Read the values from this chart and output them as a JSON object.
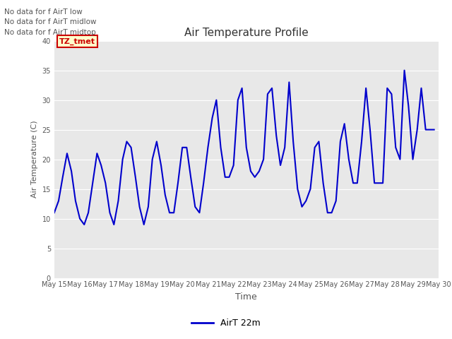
{
  "title": "Air Temperature Profile",
  "xlabel": "Time",
  "ylabel": "Air Temperature (C)",
  "line_color": "#0000CC",
  "ylim": [
    0,
    40
  ],
  "yticks": [
    0,
    5,
    10,
    15,
    20,
    25,
    30,
    35,
    40
  ],
  "xtick_labels": [
    "May 15",
    "May 16",
    "May 17",
    "May 18",
    "May 19",
    "May 20",
    "May 21",
    "May 22",
    "May 23",
    "May 24",
    "May 25",
    "May 26",
    "May 27",
    "May 28",
    "May 29",
    "May 30"
  ],
  "legend_label": "AirT 22m",
  "no_data_texts": [
    "No data for f AirT low",
    "No data for f AirT midlow",
    "No data for f AirT midtop"
  ],
  "tz_tmet_label": "TZ_tmet",
  "x_days": [
    15.0,
    15.17,
    15.33,
    15.5,
    15.67,
    15.83,
    16.0,
    16.17,
    16.33,
    16.5,
    16.67,
    16.83,
    17.0,
    17.17,
    17.33,
    17.5,
    17.67,
    17.83,
    18.0,
    18.17,
    18.33,
    18.5,
    18.67,
    18.83,
    19.0,
    19.17,
    19.33,
    19.5,
    19.67,
    19.83,
    20.0,
    20.17,
    20.33,
    20.5,
    20.67,
    20.83,
    21.0,
    21.17,
    21.33,
    21.5,
    21.67,
    21.83,
    22.0,
    22.17,
    22.33,
    22.5,
    22.67,
    22.83,
    23.0,
    23.17,
    23.33,
    23.5,
    23.67,
    23.83,
    24.0,
    24.17,
    24.33,
    24.5,
    24.67,
    24.83,
    25.0,
    25.17,
    25.33,
    25.5,
    25.67,
    25.83,
    26.0,
    26.17,
    26.33,
    26.5,
    26.67,
    26.83,
    27.0,
    27.17,
    27.33,
    27.5,
    27.67,
    27.83,
    28.0,
    28.17,
    28.33,
    28.5,
    28.67,
    28.83,
    29.0,
    29.17,
    29.33,
    29.5,
    29.67,
    29.83
  ],
  "y_values": [
    11,
    13,
    17,
    21,
    18,
    13,
    10,
    9,
    11,
    16,
    21,
    19,
    16,
    11,
    9,
    13,
    20,
    23,
    22,
    17,
    12,
    9,
    12,
    20,
    23,
    19,
    14,
    11,
    11,
    16,
    22,
    22,
    17,
    12,
    11,
    16,
    22,
    27,
    30,
    22,
    17,
    17,
    19,
    30,
    32,
    22,
    18,
    17,
    18,
    20,
    31,
    32,
    24,
    19,
    22,
    33,
    23,
    15,
    12,
    13,
    15,
    22,
    23,
    16,
    11,
    11,
    13,
    23,
    26,
    20,
    16,
    16,
    23,
    32,
    25,
    16,
    16,
    16,
    32,
    31,
    22,
    20,
    35,
    29,
    20,
    25,
    32,
    25,
    25,
    25
  ]
}
